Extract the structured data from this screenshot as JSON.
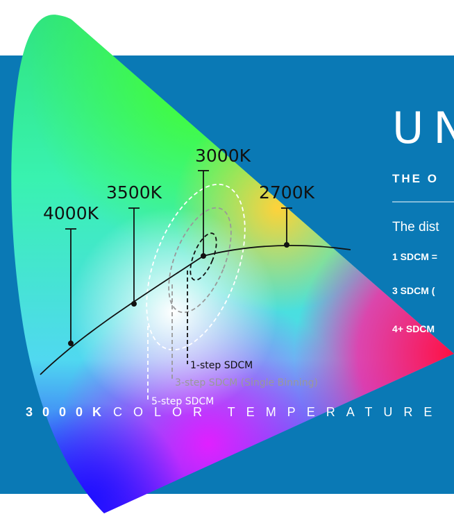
{
  "heading": {
    "title": "UN",
    "subtitle": "THE O",
    "intro": "The dist",
    "items": [
      "1 SDCM =",
      "3 SDCM (",
      "4+ SDCM"
    ]
  },
  "diagram": {
    "temperature_labels": [
      "4000K",
      "3500K",
      "3000K",
      "2700K"
    ],
    "ellipse_labels": [
      "1-step SDCM",
      "3-step SDCM (Single Binning)",
      "5-step SDCM"
    ]
  },
  "footer": {
    "highlight": "3000K",
    "caption": "COLOR TEMPERATURE"
  }
}
